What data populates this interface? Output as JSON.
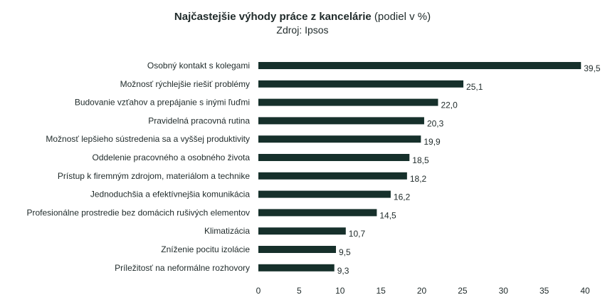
{
  "chart_data": {
    "type": "bar",
    "orientation": "horizontal",
    "title": "Najčastejšie výhody práce z kancelárie",
    "title_suffix": "(podiel v %)",
    "subtitle": "Zdroj: Ipsos",
    "categories": [
      "Osobný kontakt s kolegami",
      "Možnosť rýchlejšie riešiť problémy",
      "Budovanie vzťahov a prepájanie s inými ľuďmi",
      "Pravidelná pracovná rutina",
      "Možnosť lepšieho sústredenia sa a vyššej produktivity",
      "Oddelenie pracovného a osobného života",
      "Prístup k firemným zdrojom, materiálom a technike",
      "Jednoduchšia a efektívnejšia komunikácia",
      "Profesionálne prostredie bez domácich rušivých elementov",
      "Klimatizácia",
      "Zníženie pocitu izolácie",
      "Príležitosť na neformálne rozhovory"
    ],
    "values": [
      39.5,
      25.1,
      22.0,
      20.3,
      19.9,
      18.5,
      18.2,
      16.2,
      14.5,
      10.7,
      9.5,
      9.3
    ],
    "value_labels": [
      "39,5",
      "25,1",
      "22,0",
      "20,3",
      "19,9",
      "18,5",
      "18,2",
      "16,2",
      "14,5",
      "10,7",
      "9,5",
      "9,3"
    ],
    "xlim": [
      0,
      40
    ],
    "xticks": [
      0,
      5,
      10,
      15,
      20,
      25,
      30,
      35,
      40
    ],
    "xlabel": "",
    "ylabel": "",
    "grid": false,
    "legend": "none",
    "bar_color": "#16302b"
  }
}
